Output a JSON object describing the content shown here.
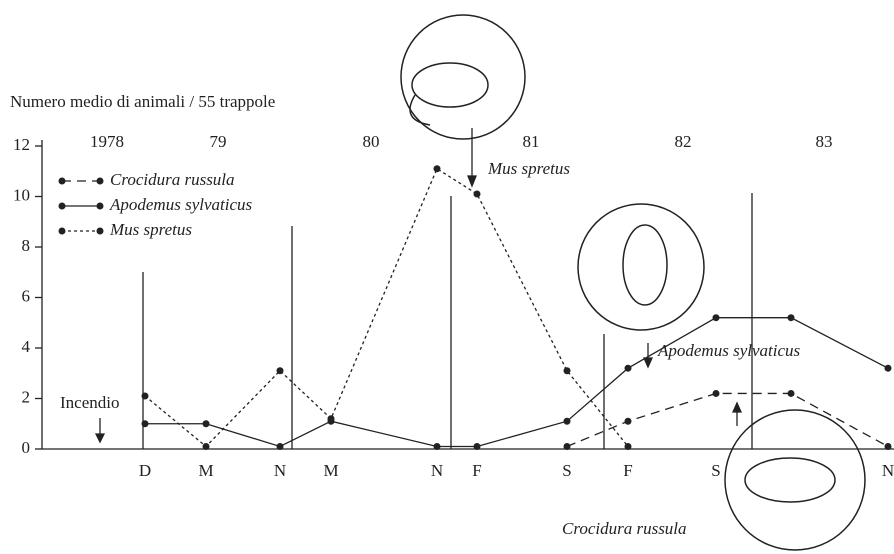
{
  "chart_data": {
    "type": "line",
    "ylabel": "Numero medio di animali / 55 trappole",
    "categories": [
      "D",
      "M",
      "N",
      "M",
      "N",
      "F",
      "S",
      "F",
      "S",
      null,
      "N"
    ],
    "years": [
      "1978",
      "79",
      "80",
      "81",
      "82",
      "83"
    ],
    "series": [
      {
        "name": "Crocidura russula",
        "color": "#222",
        "dash": "9,6",
        "values": [
          null,
          null,
          null,
          null,
          null,
          null,
          0.1,
          1.1,
          2.2,
          2.2,
          0.1
        ]
      },
      {
        "name": "Apodemus sylvaticus",
        "color": "#222",
        "dash": "none",
        "values": [
          1,
          1,
          0.1,
          1.1,
          0.1,
          0.1,
          1.1,
          3.2,
          5.2,
          5.2,
          3.2
        ]
      },
      {
        "name": "Mus spretus",
        "color": "#222",
        "dash": "3,3",
        "values": [
          2.1,
          0.1,
          3.1,
          1.2,
          11.1,
          10.1,
          3.1,
          0.1,
          null,
          null,
          null
        ]
      }
    ],
    "ylim": [
      0,
      12
    ],
    "yticks": [
      0,
      2,
      4,
      6,
      8,
      10,
      12
    ],
    "annotations": [
      "Incendio",
      "Mus spretus",
      "Apodemus sylvaticus",
      "Crocidura russula"
    ]
  }
}
